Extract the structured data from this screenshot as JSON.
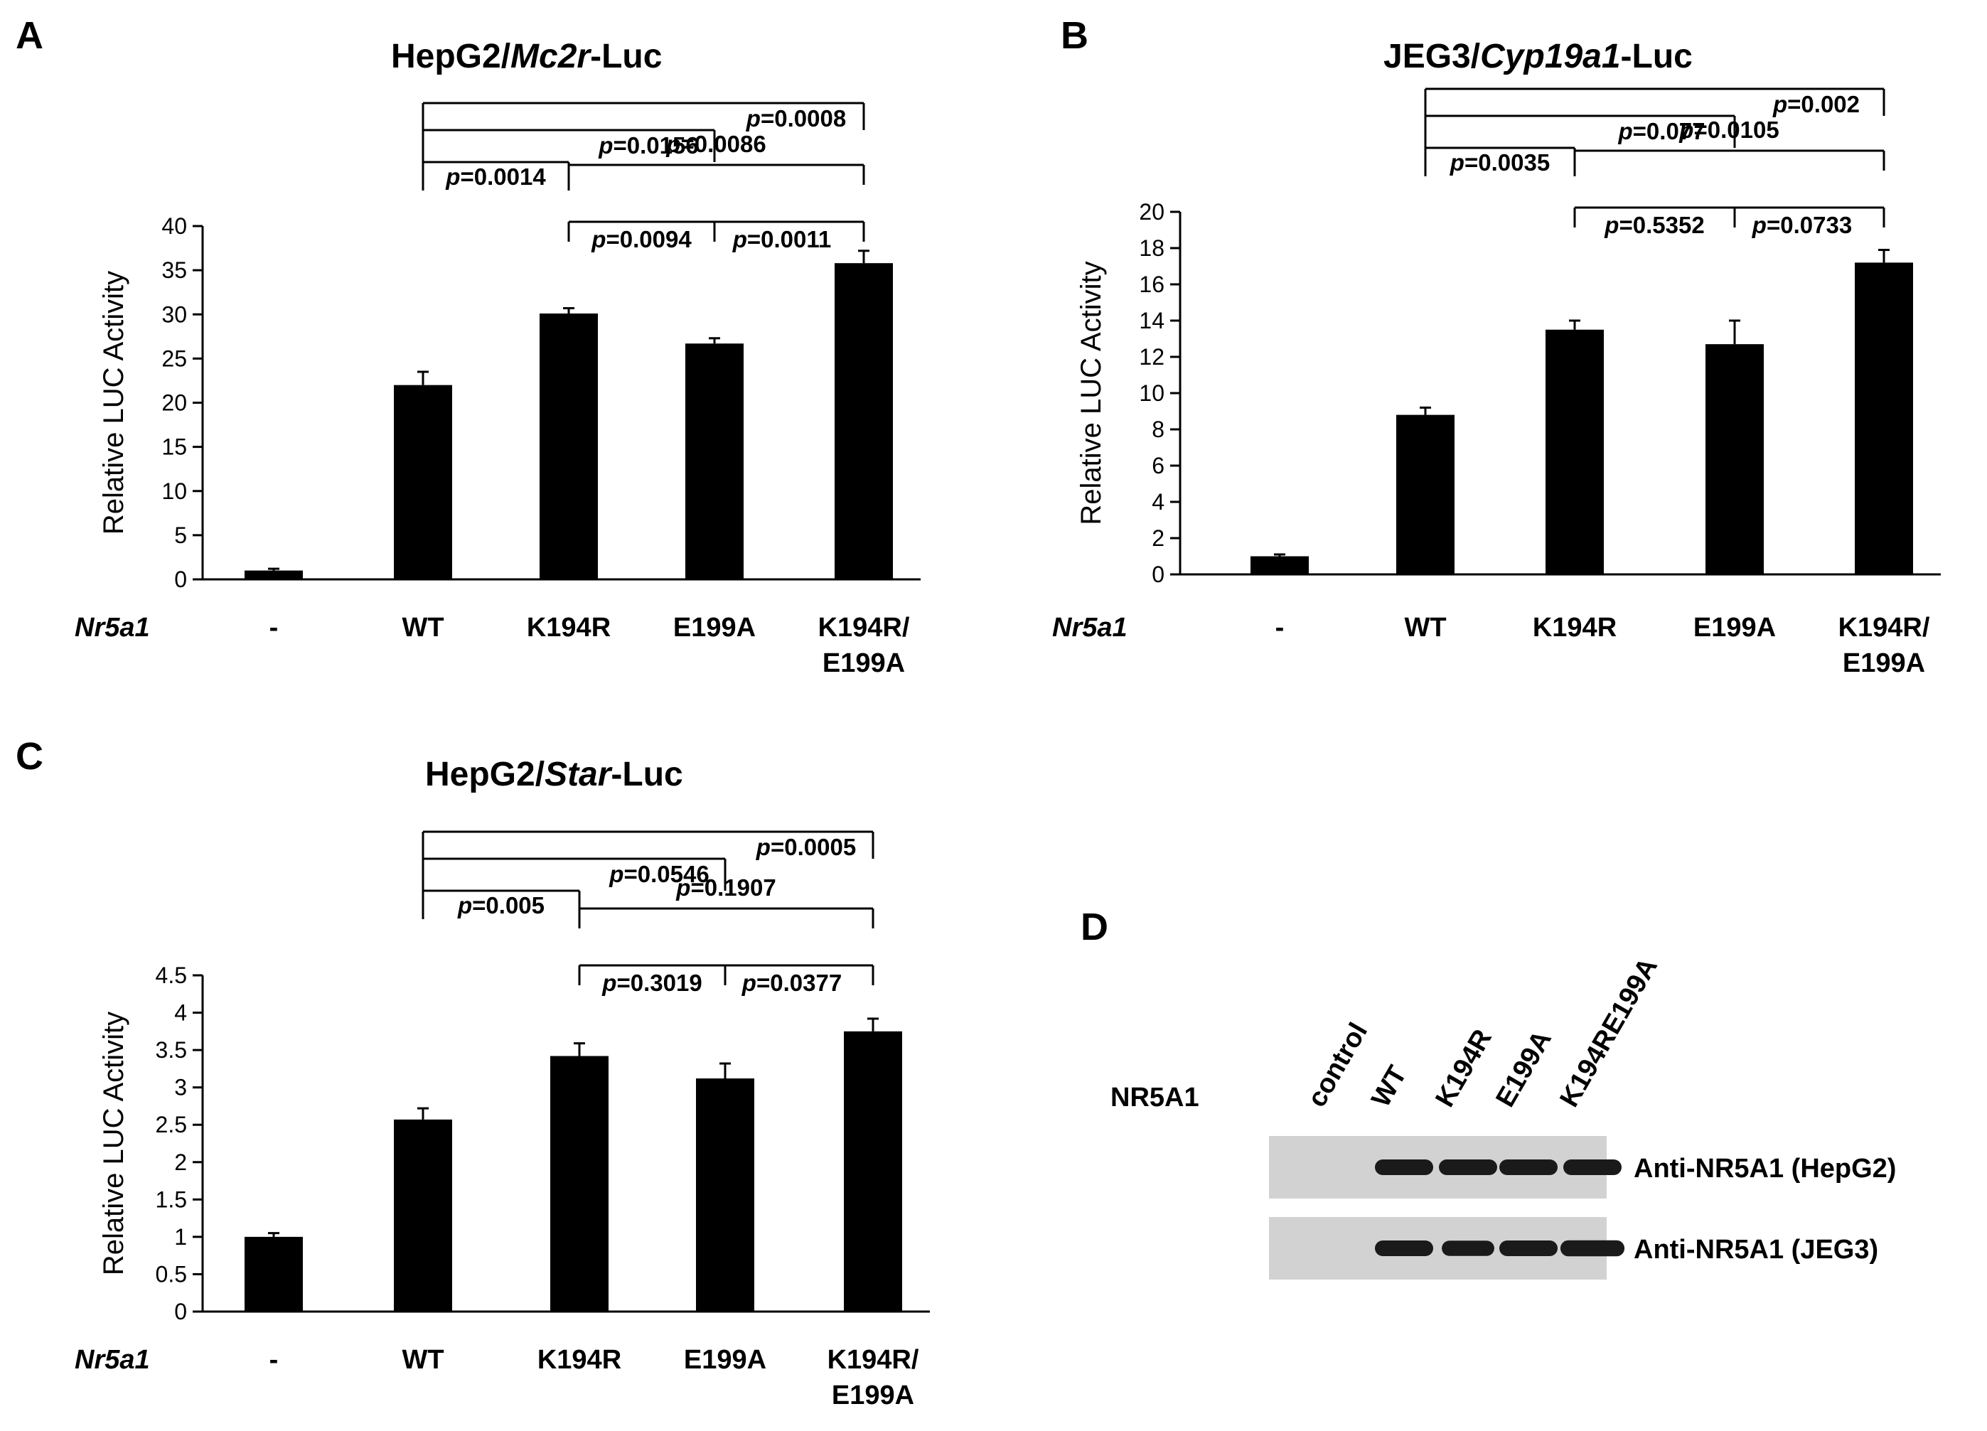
{
  "panels": [
    {
      "id": "A",
      "letter": "A",
      "title_pre": "HepG2/",
      "title_gene": "Mc2r",
      "title_post": "-Luc"
    },
    {
      "id": "B",
      "letter": "B",
      "title_pre": "JEG3/",
      "title_gene": "Cyp19a1",
      "title_post": "-Luc"
    },
    {
      "id": "C",
      "letter": "C",
      "title_pre": "HepG2/",
      "title_gene": "Star",
      "title_post": "-Luc"
    },
    {
      "id": "D",
      "letter": "D"
    }
  ],
  "chart_data": [
    {
      "type": "bar",
      "title": "HepG2/Mc2r-Luc",
      "ylabel": "Relative  LUC Activity",
      "xlabel_row": "Nr5a1",
      "categories": [
        "-",
        "WT",
        "K194R",
        "E199A",
        "K194R/\nE199A"
      ],
      "values": [
        1,
        22,
        30.1,
        26.7,
        35.8
      ],
      "errors": [
        0.2,
        1.5,
        0.6,
        0.6,
        1.4
      ],
      "ylim": [
        0,
        40
      ],
      "yticks": [
        "0",
        "5",
        "10",
        "15",
        "20",
        "25",
        "30",
        "35",
        "40"
      ],
      "comparisons": [
        {
          "from": "WT",
          "to": "K194R",
          "p": "0.0014"
        },
        {
          "from": "WT",
          "to": "E199A",
          "p": "0.0156"
        },
        {
          "from": "WT",
          "to": "K194R/E199A",
          "p": "0.0008"
        },
        {
          "from": "K194R",
          "to": "K194R/E199A",
          "p": "0.0086"
        },
        {
          "from": "K194R",
          "to": "E199A",
          "p": "0.0094"
        },
        {
          "from": "E199A",
          "to": "K194R/E199A",
          "p": "0.0011"
        }
      ]
    },
    {
      "type": "bar",
      "title": "JEG3/Cyp19a1-Luc",
      "ylabel": "Relative  LUC Activity",
      "xlabel_row": "Nr5a1",
      "categories": [
        "-",
        "WT",
        "K194R",
        "E199A",
        "K194R/\nE199A"
      ],
      "values": [
        1,
        8.8,
        13.5,
        12.7,
        17.2
      ],
      "errors": [
        0.1,
        0.4,
        0.5,
        1.3,
        0.7
      ],
      "ylim": [
        0,
        20
      ],
      "yticks": [
        "0",
        "2",
        "4",
        "6",
        "8",
        "10",
        "12",
        "14",
        "16",
        "18",
        "20"
      ],
      "comparisons": [
        {
          "from": "WT",
          "to": "K194R",
          "p": "0.0035"
        },
        {
          "from": "WT",
          "to": "E199A",
          "p": "0.077"
        },
        {
          "from": "WT",
          "to": "K194R/E199A",
          "p": "0.002"
        },
        {
          "from": "K194R",
          "to": "K194R/E199A",
          "p": "0.0105"
        },
        {
          "from": "K194R",
          "to": "E199A",
          "p": "0.5352"
        },
        {
          "from": "E199A",
          "to": "K194R/E199A",
          "p": "0.0733"
        }
      ]
    },
    {
      "type": "bar",
      "title": "HepG2/Star-Luc",
      "ylabel": "Relative  LUC Activity",
      "xlabel_row": "Nr5a1",
      "categories": [
        "-",
        "WT",
        "K194R",
        "E199A",
        "K194R/\nE199A"
      ],
      "values": [
        1,
        2.57,
        3.42,
        3.12,
        3.75
      ],
      "errors": [
        0.05,
        0.15,
        0.17,
        0.2,
        0.17
      ],
      "ylim": [
        0,
        4.5
      ],
      "yticks": [
        "0",
        "0.5",
        "1",
        "1.5",
        "2",
        "2.5",
        "3",
        "3.5",
        "4",
        "4.5"
      ],
      "comparisons": [
        {
          "from": "WT",
          "to": "K194R",
          "p": "0.005"
        },
        {
          "from": "WT",
          "to": "E199A",
          "p": "0.0546"
        },
        {
          "from": "WT",
          "to": "K194R/E199A",
          "p": "0.0005"
        },
        {
          "from": "K194R",
          "to": "K194R/E199A",
          "p": "0.1907"
        },
        {
          "from": "K194R",
          "to": "E199A",
          "p": "0.3019"
        },
        {
          "from": "E199A",
          "to": "K194R/E199A",
          "p": "0.0377"
        }
      ]
    }
  ],
  "blot": {
    "row_label": "NR5A1",
    "lanes": [
      "control",
      "WT",
      "K194R",
      "E199A",
      "K194RE199A"
    ],
    "rows": [
      {
        "label": "Anti-NR5A1 (HepG2)",
        "band_intensity": [
          0,
          1,
          1,
          1,
          1
        ]
      },
      {
        "label": "Anti-NR5A1 (JEG3)",
        "band_intensity": [
          0,
          1,
          0.9,
          1,
          1.1
        ]
      }
    ]
  },
  "colors": {
    "bar": "#000000",
    "axis": "#000000",
    "blot_bg": "#d2d2d2",
    "band": "#1a1a1a"
  }
}
